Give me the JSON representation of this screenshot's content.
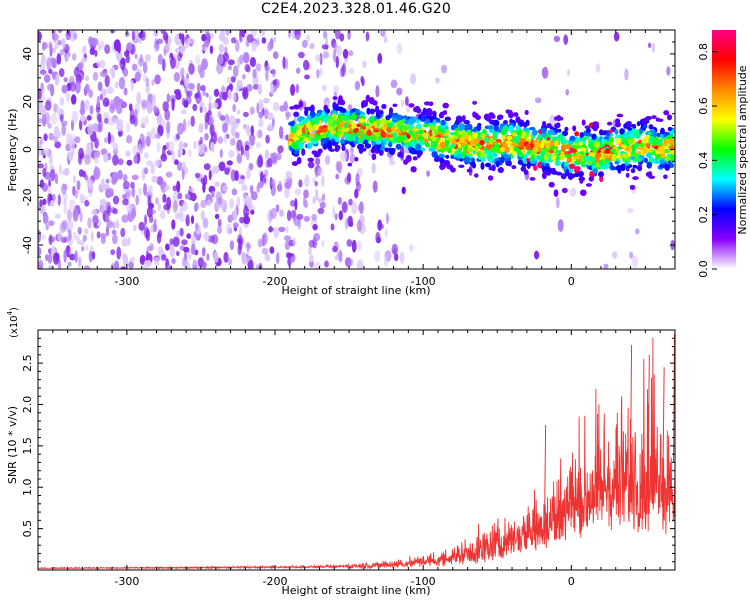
{
  "title": "C2E4.2023.328.01.46.G20",
  "chart_data": [
    {
      "type": "heatmap",
      "xlabel": "Height of straight line (km)",
      "ylabel": "Frequency (Hz)",
      "xlim": [
        -360,
        70
      ],
      "ylim": [
        -50,
        50
      ],
      "x_ticks": [
        -300,
        -200,
        -100,
        0
      ],
      "y_ticks": [
        -40,
        -20,
        0,
        20,
        40
      ],
      "colorbar": {
        "label": "Normalized spectral amplitude",
        "range": [
          0.0,
          0.88
        ],
        "ticks": [
          0.0,
          0.2,
          0.4,
          0.6,
          0.8
        ],
        "colors": [
          "#ffffff",
          "#8800ff",
          "#0000ff",
          "#00ffff",
          "#00ff00",
          "#ffff00",
          "#ff8800",
          "#ff0000",
          "#ff0088"
        ]
      },
      "signal_ridge": {
        "x": [
          -190,
          -175,
          -160,
          -145,
          -130,
          -115,
          -100,
          -85,
          -70,
          -55,
          -40,
          -25,
          -10,
          0,
          10,
          20,
          30,
          40,
          50,
          60,
          70
        ],
        "freq_hz": [
          5,
          8,
          10,
          9,
          8,
          7,
          6,
          4,
          2,
          2,
          3,
          1,
          0,
          -2,
          -1,
          -2,
          0,
          1,
          2,
          0,
          1
        ]
      },
      "grid": false
    },
    {
      "type": "line",
      "xlabel": "Height of straight line (km)",
      "ylabel": "SNR (10 * v/v)",
      "y_multiplier": "(x10",
      "y_multiplier_exp": "4",
      "y_multiplier_close": ")",
      "xlim": [
        -360,
        70
      ],
      "ylim": [
        0,
        2.9
      ],
      "x_ticks": [
        -300,
        -200,
        -100,
        0
      ],
      "y_ticks": [
        0.5,
        1.0,
        1.5,
        2.0,
        2.5
      ],
      "y_tick_labels": [
        "0.5",
        "1.0",
        "1.5",
        "2.0",
        "2.5"
      ],
      "color": "#ee3333",
      "envelope": {
        "x": [
          -360,
          -250,
          -160,
          -130,
          -110,
          -100,
          -90,
          -80,
          -70,
          -60,
          -50,
          -40,
          -30,
          -20,
          -10,
          0,
          10,
          20,
          30,
          40,
          50,
          60,
          70
        ],
        "low": [
          0.02,
          0.02,
          0.03,
          0.04,
          0.05,
          0.06,
          0.07,
          0.09,
          0.1,
          0.15,
          0.2,
          0.25,
          0.35,
          0.4,
          0.45,
          0.55,
          0.7,
          0.75,
          0.8,
          0.8,
          0.7,
          0.7,
          0.6
        ],
        "mid": [
          0.02,
          0.03,
          0.04,
          0.07,
          0.1,
          0.13,
          0.15,
          0.2,
          0.25,
          0.3,
          0.4,
          0.45,
          0.55,
          0.65,
          0.75,
          0.9,
          1.05,
          1.15,
          1.25,
          1.3,
          1.35,
          1.35,
          1.3
        ],
        "high": [
          0.03,
          0.04,
          0.06,
          0.12,
          0.15,
          0.2,
          0.25,
          0.35,
          0.4,
          0.5,
          0.6,
          0.75,
          0.85,
          1.2,
          1.4,
          1.6,
          1.9,
          2.1,
          2.4,
          2.6,
          2.6,
          2.3,
          2.1
        ]
      },
      "peaks": [
        {
          "x": -18,
          "y": 1.75
        },
        {
          "x": 40,
          "y": 2.72
        },
        {
          "x": 52,
          "y": 2.6
        },
        {
          "x": 62,
          "y": 2.45
        },
        {
          "x": 69,
          "y": 2.85
        }
      ],
      "grid": false
    }
  ]
}
